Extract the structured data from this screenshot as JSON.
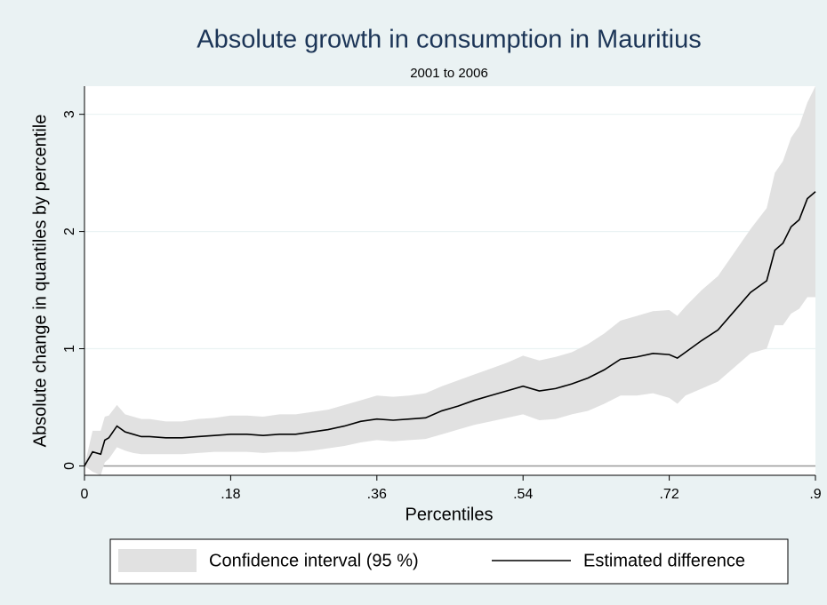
{
  "chart_data": {
    "type": "line",
    "title": "Absolute growth in consumption in Mauritius",
    "subtitle": "2001 to 2006",
    "x_label": "Percentiles",
    "y_label": "Absolute change in quantiles by percentile",
    "x": [
      0,
      0.01,
      0.02,
      0.025,
      0.03,
      0.04,
      0.05,
      0.06,
      0.07,
      0.08,
      0.1,
      0.12,
      0.14,
      0.16,
      0.18,
      0.2,
      0.22,
      0.24,
      0.26,
      0.28,
      0.3,
      0.32,
      0.34,
      0.36,
      0.38,
      0.4,
      0.42,
      0.44,
      0.46,
      0.48,
      0.5,
      0.52,
      0.54,
      0.56,
      0.58,
      0.6,
      0.62,
      0.64,
      0.66,
      0.68,
      0.7,
      0.72,
      0.73,
      0.74,
      0.76,
      0.78,
      0.8,
      0.82,
      0.84,
      0.85,
      0.86,
      0.87,
      0.88,
      0.89,
      0.9
    ],
    "series": [
      {
        "name": "Confidence interval (95 %)",
        "color": "#e1e1e1",
        "upper": [
          0,
          0.3,
          0.3,
          0.42,
          0.43,
          0.52,
          0.44,
          0.42,
          0.4,
          0.4,
          0.38,
          0.38,
          0.4,
          0.41,
          0.43,
          0.43,
          0.42,
          0.44,
          0.44,
          0.46,
          0.48,
          0.52,
          0.56,
          0.6,
          0.59,
          0.6,
          0.62,
          0.68,
          0.73,
          0.78,
          0.83,
          0.88,
          0.94,
          0.9,
          0.93,
          0.97,
          1.04,
          1.13,
          1.24,
          1.28,
          1.32,
          1.33,
          1.28,
          1.36,
          1.5,
          1.62,
          1.82,
          2.02,
          2.2,
          2.5,
          2.6,
          2.8,
          2.9,
          3.1,
          3.24
        ],
        "lower": [
          0,
          -0.05,
          -0.08,
          0.03,
          0.06,
          0.16,
          0.13,
          0.11,
          0.1,
          0.1,
          0.1,
          0.1,
          0.11,
          0.12,
          0.12,
          0.12,
          0.11,
          0.12,
          0.12,
          0.13,
          0.15,
          0.17,
          0.2,
          0.22,
          0.21,
          0.22,
          0.23,
          0.27,
          0.31,
          0.35,
          0.38,
          0.41,
          0.44,
          0.39,
          0.4,
          0.44,
          0.47,
          0.53,
          0.6,
          0.6,
          0.62,
          0.58,
          0.53,
          0.6,
          0.66,
          0.72,
          0.84,
          0.96,
          1.0,
          1.2,
          1.2,
          1.3,
          1.34,
          1.44,
          1.44
        ]
      },
      {
        "name": "Estimated difference",
        "color": "#000000",
        "values": [
          0,
          0.12,
          0.1,
          0.22,
          0.24,
          0.34,
          0.29,
          0.27,
          0.25,
          0.25,
          0.24,
          0.24,
          0.25,
          0.26,
          0.27,
          0.27,
          0.26,
          0.27,
          0.27,
          0.29,
          0.31,
          0.34,
          0.38,
          0.4,
          0.39,
          0.4,
          0.41,
          0.47,
          0.51,
          0.56,
          0.6,
          0.64,
          0.68,
          0.64,
          0.66,
          0.7,
          0.75,
          0.82,
          0.91,
          0.93,
          0.96,
          0.95,
          0.92,
          0.97,
          1.07,
          1.16,
          1.32,
          1.48,
          1.58,
          1.84,
          1.9,
          2.04,
          2.1,
          2.28,
          2.34
        ]
      }
    ],
    "xlim": [
      0,
      0.9
    ],
    "xticks": [
      0,
      {
        "value": 0.18,
        "label": ".18"
      },
      {
        "value": 0.36,
        "label": ".36"
      },
      {
        "value": 0.54,
        "label": ".54"
      },
      {
        "value": 0.72,
        "label": ".72"
      },
      {
        "value": 0.9,
        "label": ".9"
      }
    ],
    "ylim": [
      -0.08,
      3.24
    ],
    "yticks": [
      0,
      1,
      2,
      3
    ],
    "grid": true,
    "legend": "bottom"
  }
}
